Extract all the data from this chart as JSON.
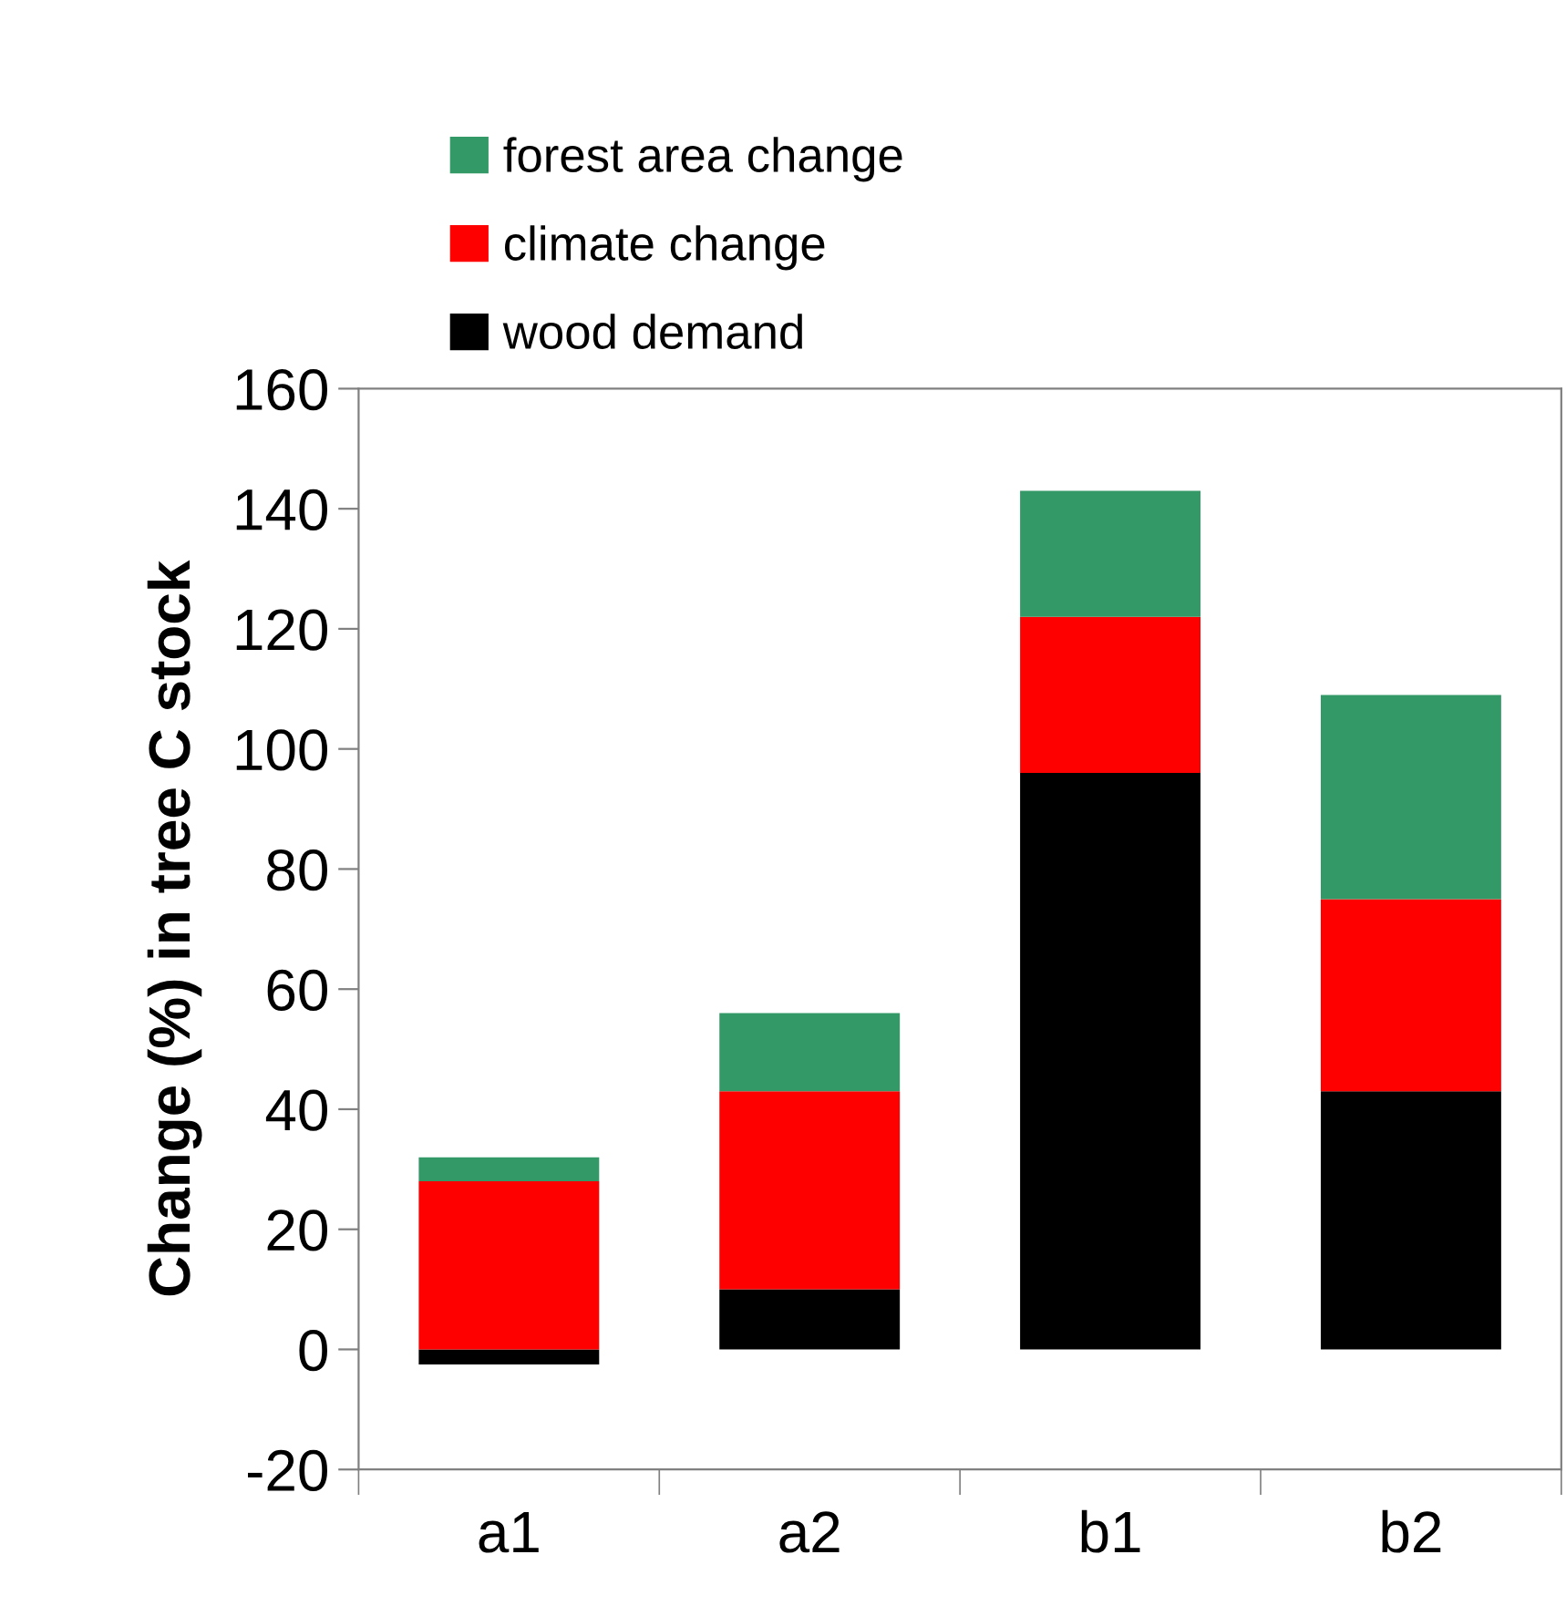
{
  "chart_data": {
    "type": "bar",
    "stacked": true,
    "ylabel": "Change (%) in tree C stock",
    "categories": [
      "a1",
      "a2",
      "b1",
      "b2"
    ],
    "series": [
      {
        "name": "wood demand",
        "color": "#000000",
        "values": [
          -2.5,
          10,
          96,
          43
        ]
      },
      {
        "name": "climate change",
        "color": "#ff0000",
        "values": [
          28,
          33,
          26,
          32
        ]
      },
      {
        "name": "forest area change",
        "color": "#339966",
        "values": [
          4,
          13,
          21,
          34
        ]
      }
    ],
    "ylim": [
      -20,
      160
    ],
    "yticks": [
      -20,
      0,
      20,
      40,
      60,
      80,
      100,
      120,
      140,
      160
    ],
    "grid": false,
    "legend": "top"
  }
}
